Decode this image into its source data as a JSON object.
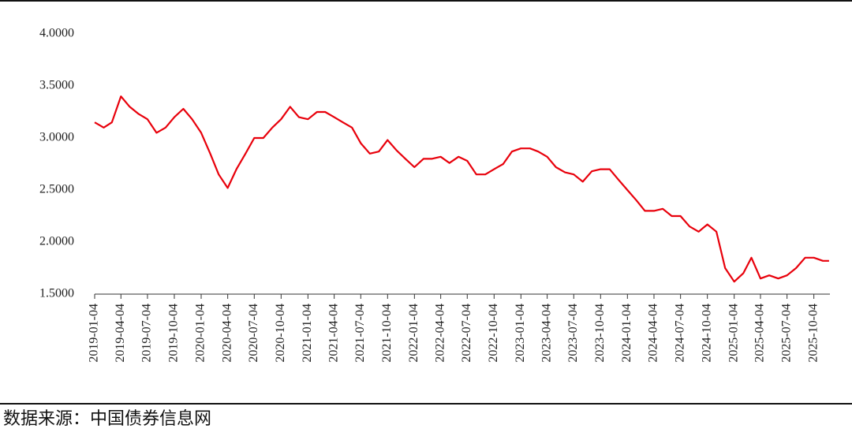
{
  "chart_data": {
    "type": "line",
    "source": "数据来源：中国债券信息网",
    "color": "#e8000b",
    "x": [
      "2019-01-04",
      "2019-02-04",
      "2019-03-04",
      "2019-04-04",
      "2019-05-04",
      "2019-06-04",
      "2019-07-04",
      "2019-08-04",
      "2019-09-04",
      "2019-10-04",
      "2019-11-04",
      "2019-12-04",
      "2020-01-04",
      "2020-02-04",
      "2020-03-04",
      "2020-04-04",
      "2020-05-04",
      "2020-06-04",
      "2020-07-04",
      "2020-08-04",
      "2020-09-04",
      "2020-10-04",
      "2020-11-04",
      "2020-12-04",
      "2021-01-04",
      "2021-02-04",
      "2021-03-04",
      "2021-04-04",
      "2021-05-04",
      "2021-06-04",
      "2021-07-04",
      "2021-08-04",
      "2021-09-04",
      "2021-10-04",
      "2021-11-04",
      "2021-12-04",
      "2022-01-04",
      "2022-02-04",
      "2022-03-04",
      "2022-04-04",
      "2022-05-04",
      "2022-06-04",
      "2022-07-04",
      "2022-08-04",
      "2022-09-04",
      "2022-10-04",
      "2022-11-04",
      "2022-12-04",
      "2023-01-04",
      "2023-02-04",
      "2023-03-04",
      "2023-04-04",
      "2023-05-04",
      "2023-06-04",
      "2023-07-04",
      "2023-08-04",
      "2023-09-04",
      "2023-10-04",
      "2023-11-04",
      "2023-12-04",
      "2024-01-04",
      "2024-02-04",
      "2024-03-04",
      "2024-04-04",
      "2024-05-04",
      "2024-06-04",
      "2024-07-04",
      "2024-08-04",
      "2024-09-04",
      "2024-10-04",
      "2024-11-04",
      "2024-12-04",
      "2025-01-04",
      "2025-02-04",
      "2025-03-04",
      "2025-04-04",
      "2025-05-04",
      "2025-06-04",
      "2025-07-04",
      "2025-08-04",
      "2025-09-04",
      "2025-10-04",
      "2025-11-04",
      "2025-11-25"
    ],
    "values": [
      3.15,
      3.1,
      3.15,
      3.4,
      3.3,
      3.23,
      3.18,
      3.05,
      3.1,
      3.2,
      3.28,
      3.18,
      3.05,
      2.85,
      2.65,
      2.52,
      2.7,
      2.85,
      3.0,
      3.0,
      3.1,
      3.18,
      3.3,
      3.2,
      3.18,
      3.25,
      3.25,
      3.2,
      3.15,
      3.1,
      2.95,
      2.85,
      2.87,
      2.98,
      2.88,
      2.8,
      2.72,
      2.8,
      2.8,
      2.82,
      2.76,
      2.82,
      2.78,
      2.65,
      2.65,
      2.7,
      2.75,
      2.87,
      2.9,
      2.9,
      2.87,
      2.82,
      2.72,
      2.67,
      2.65,
      2.58,
      2.68,
      2.7,
      2.7,
      2.6,
      2.5,
      2.4,
      2.3,
      2.3,
      2.32,
      2.25,
      2.25,
      2.15,
      2.1,
      2.17,
      2.1,
      1.75,
      1.62,
      1.7,
      1.85,
      1.65,
      1.68,
      1.65,
      1.68,
      1.75,
      1.85,
      1.85,
      1.82,
      1.82
    ],
    "xlim": [
      "2019-01-04",
      "2025-11-28"
    ],
    "xticks": [
      "2019-01-04",
      "2019-04-04",
      "2019-07-04",
      "2019-10-04",
      "2020-01-04",
      "2020-04-04",
      "2020-07-04",
      "2020-10-04",
      "2021-01-04",
      "2021-04-04",
      "2021-07-04",
      "2021-10-04",
      "2022-01-04",
      "2022-04-04",
      "2022-07-04",
      "2022-10-04",
      "2023-01-04",
      "2023-04-04",
      "2023-07-04",
      "2023-10-04",
      "2024-01-04",
      "2024-04-04",
      "2024-07-04",
      "2024-10-04",
      "2025-01-04",
      "2025-04-04",
      "2025-07-04",
      "2025-10-04"
    ],
    "ylim": [
      1.5,
      4
    ],
    "yticks": [
      {
        "value": 1.5,
        "label": "1.5000"
      },
      {
        "value": 2,
        "label": "2.0000"
      },
      {
        "value": 2.5,
        "label": "2.5000"
      },
      {
        "value": 3,
        "label": "3.0000"
      },
      {
        "value": 3.5,
        "label": "3.5000"
      },
      {
        "value": 4,
        "label": "4.0000"
      }
    ]
  }
}
